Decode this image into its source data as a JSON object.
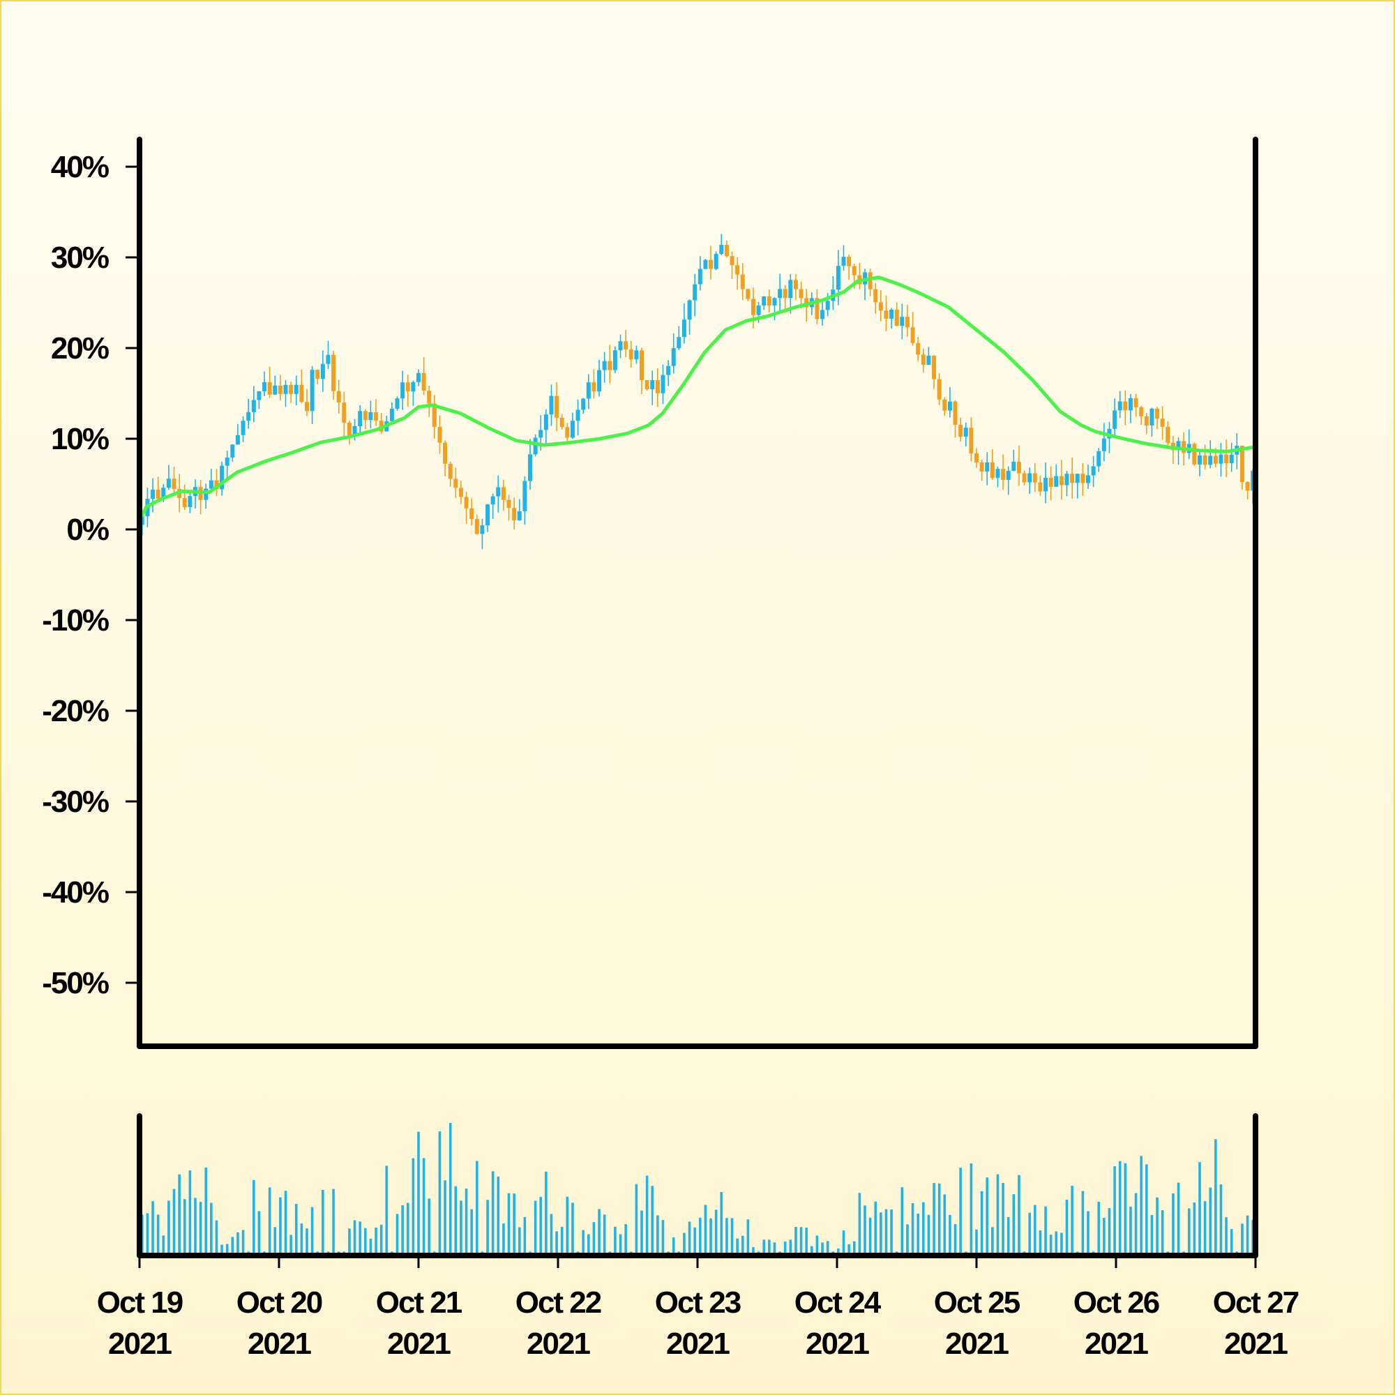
{
  "chart_data": [
    {
      "type": "candlestick",
      "title": "",
      "ylabel": "",
      "xlabel": "",
      "ylim": [
        -57,
        43
      ],
      "ytick_labels": [
        "40%",
        "30%",
        "20%",
        "10%",
        "0%",
        "-10%",
        "-20%",
        "-30%",
        "-40%",
        "-50%"
      ],
      "ytick_values": [
        40,
        30,
        20,
        10,
        0,
        -10,
        -20,
        -30,
        -40,
        -50
      ],
      "x_start": "2021-10-19",
      "x_end": "2021-10-27",
      "xtick_labels": [
        [
          "Oct 19",
          "2021"
        ],
        [
          "Oct 20",
          "2021"
        ],
        [
          "Oct 21",
          "2021"
        ],
        [
          "Oct 22",
          "2021"
        ],
        [
          "Oct 23",
          "2021"
        ],
        [
          "Oct 24",
          "2021"
        ],
        [
          "Oct 25",
          "2021"
        ],
        [
          "Oct 26",
          "2021"
        ],
        [
          "Oct 27",
          "2021"
        ]
      ],
      "close_path": [
        [
          0,
          0.5
        ],
        [
          0.1,
          4.5
        ],
        [
          0.3,
          4.5
        ],
        [
          0.45,
          3.5
        ],
        [
          0.6,
          7
        ],
        [
          0.75,
          12.5
        ],
        [
          0.85,
          15
        ],
        [
          1.2,
          14.5
        ],
        [
          1.25,
          18
        ],
        [
          1.35,
          18
        ],
        [
          1.5,
          10
        ],
        [
          1.6,
          13.5
        ],
        [
          1.75,
          10.5
        ],
        [
          1.85,
          15
        ],
        [
          1.93,
          17
        ],
        [
          2.05,
          15
        ],
        [
          2.2,
          7
        ],
        [
          2.3,
          4
        ],
        [
          2.42,
          -1
        ],
        [
          2.55,
          4.5
        ],
        [
          2.7,
          0.5
        ],
        [
          2.8,
          8
        ],
        [
          2.95,
          14.5
        ],
        [
          3.05,
          10
        ],
        [
          3.2,
          15.5
        ],
        [
          3.35,
          18.5
        ],
        [
          3.45,
          20
        ],
        [
          3.6,
          17
        ],
        [
          3.7,
          14
        ],
        [
          3.85,
          21
        ],
        [
          4.0,
          28
        ],
        [
          4.15,
          31
        ],
        [
          4.25,
          30
        ],
        [
          4.4,
          24
        ],
        [
          4.55,
          26
        ],
        [
          4.7,
          27.5
        ],
        [
          4.82,
          24
        ],
        [
          4.92,
          23
        ],
        [
          5.0,
          28.5
        ],
        [
          5.15,
          29.5
        ],
        [
          5.35,
          23
        ],
        [
          5.5,
          22.5
        ],
        [
          5.7,
          16
        ],
        [
          5.85,
          11
        ],
        [
          6.0,
          8
        ],
        [
          6.15,
          5.5
        ],
        [
          6.5,
          6
        ],
        [
          6.8,
          5.5
        ],
        [
          7.0,
          13
        ],
        [
          7.1,
          14
        ],
        [
          7.25,
          13
        ],
        [
          7.4,
          9
        ],
        [
          7.55,
          7.5
        ],
        [
          7.75,
          7
        ],
        [
          7.85,
          8
        ],
        [
          7.95,
          4
        ],
        [
          8.0,
          8.5
        ]
      ],
      "moving_average": [
        [
          0,
          1
        ],
        [
          0.05,
          2.5
        ],
        [
          0.15,
          3.3
        ],
        [
          0.3,
          4.2
        ],
        [
          0.5,
          4.1
        ],
        [
          0.7,
          6.3
        ],
        [
          0.9,
          7.5
        ],
        [
          1.1,
          8.5
        ],
        [
          1.3,
          9.6
        ],
        [
          1.5,
          10.2
        ],
        [
          1.7,
          11
        ],
        [
          1.9,
          12.3
        ],
        [
          2.0,
          13.5
        ],
        [
          2.1,
          13.7
        ],
        [
          2.3,
          12.8
        ],
        [
          2.5,
          11.2
        ],
        [
          2.7,
          9.8
        ],
        [
          2.9,
          9.3
        ],
        [
          3.1,
          9.6
        ],
        [
          3.3,
          10
        ],
        [
          3.5,
          10.6
        ],
        [
          3.65,
          11.5
        ],
        [
          3.75,
          12.8
        ],
        [
          3.9,
          16
        ],
        [
          4.05,
          19.5
        ],
        [
          4.2,
          22
        ],
        [
          4.35,
          23
        ],
        [
          4.5,
          23.5
        ],
        [
          4.7,
          24.5
        ],
        [
          4.9,
          25.3
        ],
        [
          5.05,
          26.2
        ],
        [
          5.15,
          27.4
        ],
        [
          5.3,
          27.8
        ],
        [
          5.45,
          27
        ],
        [
          5.6,
          26
        ],
        [
          5.8,
          24.5
        ],
        [
          6.0,
          22
        ],
        [
          6.2,
          19.5
        ],
        [
          6.4,
          16.5
        ],
        [
          6.6,
          13
        ],
        [
          6.75,
          11.5
        ],
        [
          6.85,
          10.8
        ],
        [
          7.0,
          10.2
        ],
        [
          7.2,
          9.5
        ],
        [
          7.4,
          9
        ],
        [
          7.6,
          8.7
        ],
        [
          7.8,
          8.6
        ],
        [
          8.0,
          9.1
        ]
      ],
      "volume_profile": [
        [
          0,
          0.35
        ],
        [
          0.05,
          0.72
        ],
        [
          0.15,
          0.35
        ],
        [
          0.3,
          0.72
        ],
        [
          0.45,
          0.62
        ],
        [
          0.6,
          0.15
        ],
        [
          0.75,
          0.55
        ],
        [
          0.9,
          0.68
        ],
        [
          1.05,
          0.45
        ],
        [
          1.2,
          0.2
        ],
        [
          1.3,
          0.55
        ],
        [
          1.45,
          0.65
        ],
        [
          1.6,
          0.15
        ],
        [
          1.75,
          0.55
        ],
        [
          1.9,
          0.45
        ],
        [
          2.05,
          0.85
        ],
        [
          2.2,
          0.95
        ],
        [
          2.3,
          0.75
        ],
        [
          2.45,
          0.55
        ],
        [
          2.6,
          0.45
        ],
        [
          2.75,
          0.35
        ],
        [
          2.9,
          0.5
        ],
        [
          3.05,
          0.45
        ],
        [
          3.2,
          0.35
        ],
        [
          3.35,
          0.3
        ],
        [
          3.5,
          0.42
        ],
        [
          3.65,
          0.45
        ],
        [
          3.8,
          0.15
        ],
        [
          3.95,
          0.2
        ],
        [
          4.1,
          0.35
        ],
        [
          4.25,
          0.38
        ],
        [
          4.4,
          0.15
        ],
        [
          4.55,
          0.12
        ],
        [
          4.7,
          0.25
        ],
        [
          4.85,
          0.15
        ],
        [
          5.0,
          0.08
        ],
        [
          5.1,
          0.25
        ],
        [
          5.2,
          0.45
        ],
        [
          5.35,
          0.35
        ],
        [
          5.5,
          0.42
        ],
        [
          5.65,
          0.45
        ],
        [
          5.8,
          0.5
        ],
        [
          5.95,
          0.55
        ],
        [
          6.1,
          0.45
        ],
        [
          6.3,
          0.6
        ],
        [
          6.45,
          0.5
        ],
        [
          6.6,
          0.4
        ],
        [
          6.75,
          0.55
        ],
        [
          6.9,
          0.48
        ],
        [
          7.05,
          0.55
        ],
        [
          7.2,
          0.62
        ],
        [
          7.35,
          0.52
        ],
        [
          7.5,
          0.45
        ],
        [
          7.65,
          0.58
        ],
        [
          7.75,
          0.72
        ],
        [
          7.85,
          0.3
        ],
        [
          8.0,
          0.2
        ]
      ],
      "series_colors": {
        "up": "#1fb3e8",
        "down": "#f0a020",
        "moving_average": "#4ef04a",
        "volume": "#1fb3e8"
      },
      "grid": false,
      "legend": "none"
    }
  ]
}
